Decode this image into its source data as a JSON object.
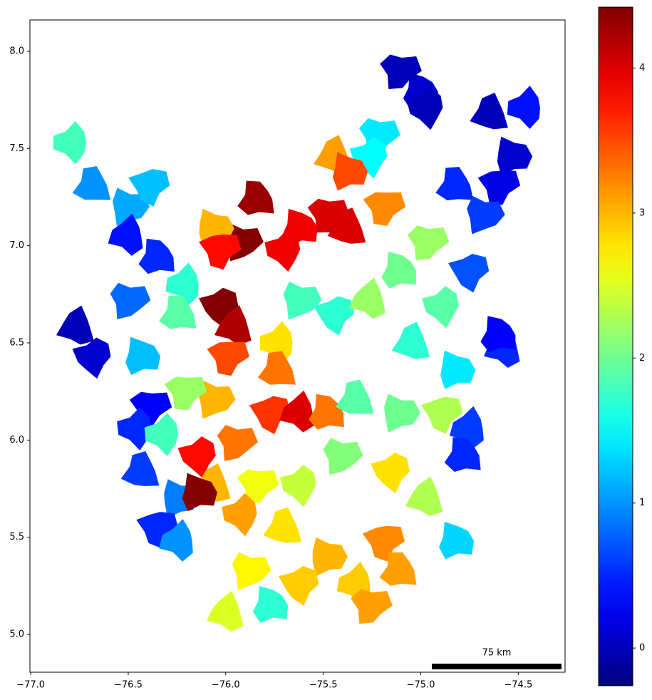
{
  "chart_data": {
    "type": "map",
    "xlim": [
      -77.004,
      -74.26
    ],
    "ylim": [
      4.806,
      8.161
    ],
    "xticks": [
      {
        "value": -77.0,
        "label": "−77.0"
      },
      {
        "value": -76.5,
        "label": "−76.5"
      },
      {
        "value": -76.0,
        "label": "−76.0"
      },
      {
        "value": -75.5,
        "label": "−75.5"
      },
      {
        "value": -75.0,
        "label": "−75.0"
      },
      {
        "value": -74.5,
        "label": "−74.5"
      }
    ],
    "yticks": [
      {
        "value": 5.0,
        "label": "5.0"
      },
      5.5,
      {
        "value": 6.0,
        "label": "6.0"
      },
      6.5,
      {
        "value": 7.0,
        "label": "7.0"
      },
      7.5,
      {
        "value": 8.0,
        "label": "8.0"
      }
    ],
    "colormap": "jet",
    "clim": [
      -0.26,
      4.42
    ],
    "cticks": [
      0,
      1,
      2,
      3,
      4
    ],
    "scale_bar_label": "75 km",
    "regions": {
      "lon": [
        -75.0,
        -75.11,
        -74.97,
        -74.64,
        -74.53,
        -74.6,
        -74.46,
        -74.82,
        -74.68,
        -74.75,
        -74.57,
        -74.6,
        -75.22,
        -75.26,
        -75.44,
        -75.37,
        -75.19,
        -76.79,
        -76.68,
        -76.5,
        -76.39,
        -76.5,
        -76.35,
        -76.5,
        -76.68,
        -76.76,
        -76.43,
        -76.39,
        -76.46,
        -76.43,
        -76.24,
        -76.35,
        -76.24,
        -75.84,
        -75.92,
        -76.03,
        -75.95,
        -75.62,
        -75.48,
        -75.7,
        -75.37,
        -76.06,
        -76.03,
        -76.21,
        -76.24,
        -75.62,
        -75.44,
        -75.26,
        -75.11,
        -74.97,
        -74.89,
        -75.04,
        -74.82,
        -75.99,
        -75.73,
        -75.73,
        -76.06,
        -75.77,
        -75.62,
        -75.48,
        -75.95,
        -76.14,
        -76.06,
        -76.14,
        -76.21,
        -76.32,
        -75.33,
        -75.11,
        -74.89,
        -74.75,
        -74.78,
        -75.41,
        -75.15,
        -74.97,
        -74.82,
        -75.84,
        -75.92,
        -75.7,
        -75.48,
        -75.19,
        -75.33,
        -75.11,
        -75.88,
        -75.62,
        -75.99,
        -75.77,
        -75.26,
        -75.62
      ],
      "lat": [
        7.79,
        7.9,
        7.71,
        7.68,
        7.46,
        7.31,
        7.71,
        7.31,
        7.16,
        6.87,
        6.47,
        6.54,
        7.57,
        7.46,
        7.46,
        7.38,
        7.2,
        7.53,
        7.31,
        7.2,
        7.31,
        7.05,
        6.94,
        6.72,
        6.43,
        6.58,
        6.43,
        6.17,
        6.06,
        5.84,
        5.7,
        5.55,
        5.48,
        7.24,
        7.02,
        6.69,
        6.58,
        7.09,
        7.16,
        6.98,
        7.09,
        7.09,
        6.98,
        6.8,
        6.65,
        6.72,
        6.65,
        6.72,
        6.87,
        7.02,
        6.69,
        6.5,
        6.36,
        6.43,
        6.5,
        6.36,
        6.21,
        6.14,
        6.14,
        6.14,
        5.99,
        5.92,
        5.77,
        5.73,
        6.25,
        6.03,
        6.21,
        6.14,
        6.14,
        6.06,
        5.92,
        5.92,
        5.84,
        5.7,
        5.48,
        5.77,
        5.62,
        5.55,
        5.4,
        5.48,
        5.26,
        5.33,
        5.33,
        5.26,
        5.11,
        5.15,
        5.15,
        5.77
      ],
      "values": [
        0.1,
        0.0,
        0.0,
        0.0,
        0.1,
        0.2,
        0.4,
        0.5,
        0.6,
        0.7,
        0.5,
        0.3,
        1.4,
        1.5,
        3.1,
        3.5,
        3.2,
        1.8,
        1.0,
        1.1,
        1.2,
        0.4,
        0.5,
        0.8,
        0.1,
        0.0,
        1.2,
        0.3,
        0.5,
        0.6,
        0.9,
        0.5,
        1.0,
        4.3,
        4.4,
        4.4,
        4.2,
        3.9,
        4.0,
        3.9,
        4.0,
        3.0,
        3.8,
        1.7,
        1.9,
        1.8,
        1.7,
        2.2,
        2.0,
        2.2,
        1.9,
        1.7,
        1.4,
        3.5,
        2.8,
        3.3,
        3.0,
        3.6,
        4.0,
        3.3,
        3.3,
        3.8,
        3.0,
        4.4,
        2.2,
        1.8,
        1.9,
        2.0,
        2.3,
        0.6,
        0.5,
        2.1,
        2.8,
        2.3,
        1.3,
        2.6,
        3.1,
        2.8,
        3.0,
        3.2,
        2.9,
        3.1,
        2.7,
        2.9,
        2.5,
        1.7,
        3.1,
        2.4
      ]
    }
  }
}
